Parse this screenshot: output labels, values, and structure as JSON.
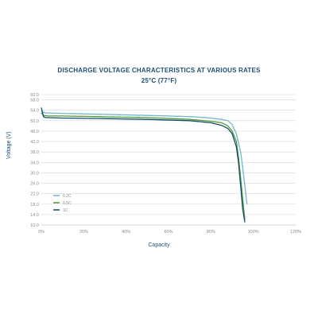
{
  "chart_data": {
    "type": "line",
    "title": "DISCHARGE VOLTAGE CHARACTERISTICS AT VARIOUS RATES",
    "subtitle": "25°C (77°F)",
    "xlabel": "Capacity",
    "ylabel": "Voltage (V)",
    "xlim": [
      0,
      120
    ],
    "ylim": [
      10,
      60
    ],
    "x_ticks": [
      "0%",
      "20%",
      "40%",
      "60%",
      "80%",
      "100%",
      "120%"
    ],
    "y_ticks": [
      "10.0",
      "14.0",
      "18.0",
      "22.0",
      "26.0",
      "30.0",
      "34.0",
      "38.0",
      "42.0",
      "46.0",
      "50.0",
      "54.0",
      "58.0",
      "60.0"
    ],
    "grid": true,
    "legend_position": "bottom-left",
    "series": [
      {
        "name": "0.2C",
        "color": "#6fb6cf",
        "x": [
          0,
          2,
          10,
          30,
          50,
          70,
          80,
          85,
          88,
          90,
          92,
          94,
          95,
          96,
          97
        ],
        "y": [
          53.5,
          53.0,
          52.8,
          52.4,
          52.0,
          51.6,
          51.0,
          50.5,
          50.0,
          48.5,
          45.0,
          38.0,
          32.0,
          25.0,
          18.0
        ]
      },
      {
        "name": "0.5C",
        "color": "#4f9a2f",
        "x": [
          0,
          1,
          3,
          10,
          30,
          50,
          70,
          80,
          85,
          88,
          90,
          92,
          93,
          94,
          95,
          96
        ],
        "y": [
          53.0,
          52.0,
          51.8,
          51.8,
          51.5,
          51.2,
          50.5,
          49.8,
          49.2,
          48.0,
          46.0,
          42.0,
          36.0,
          28.0,
          20.0,
          12.0
        ]
      },
      {
        "name": "1C",
        "color": "#0f4c6e",
        "x": [
          0,
          1,
          2,
          10,
          30,
          50,
          70,
          80,
          85,
          88,
          90,
          92,
          93,
          94,
          95,
          96
        ],
        "y": [
          55.0,
          51.5,
          51.2,
          51.0,
          50.8,
          50.5,
          50.0,
          49.2,
          48.2,
          47.0,
          45.0,
          40.0,
          34.0,
          25.0,
          16.0,
          11.0
        ]
      }
    ]
  }
}
